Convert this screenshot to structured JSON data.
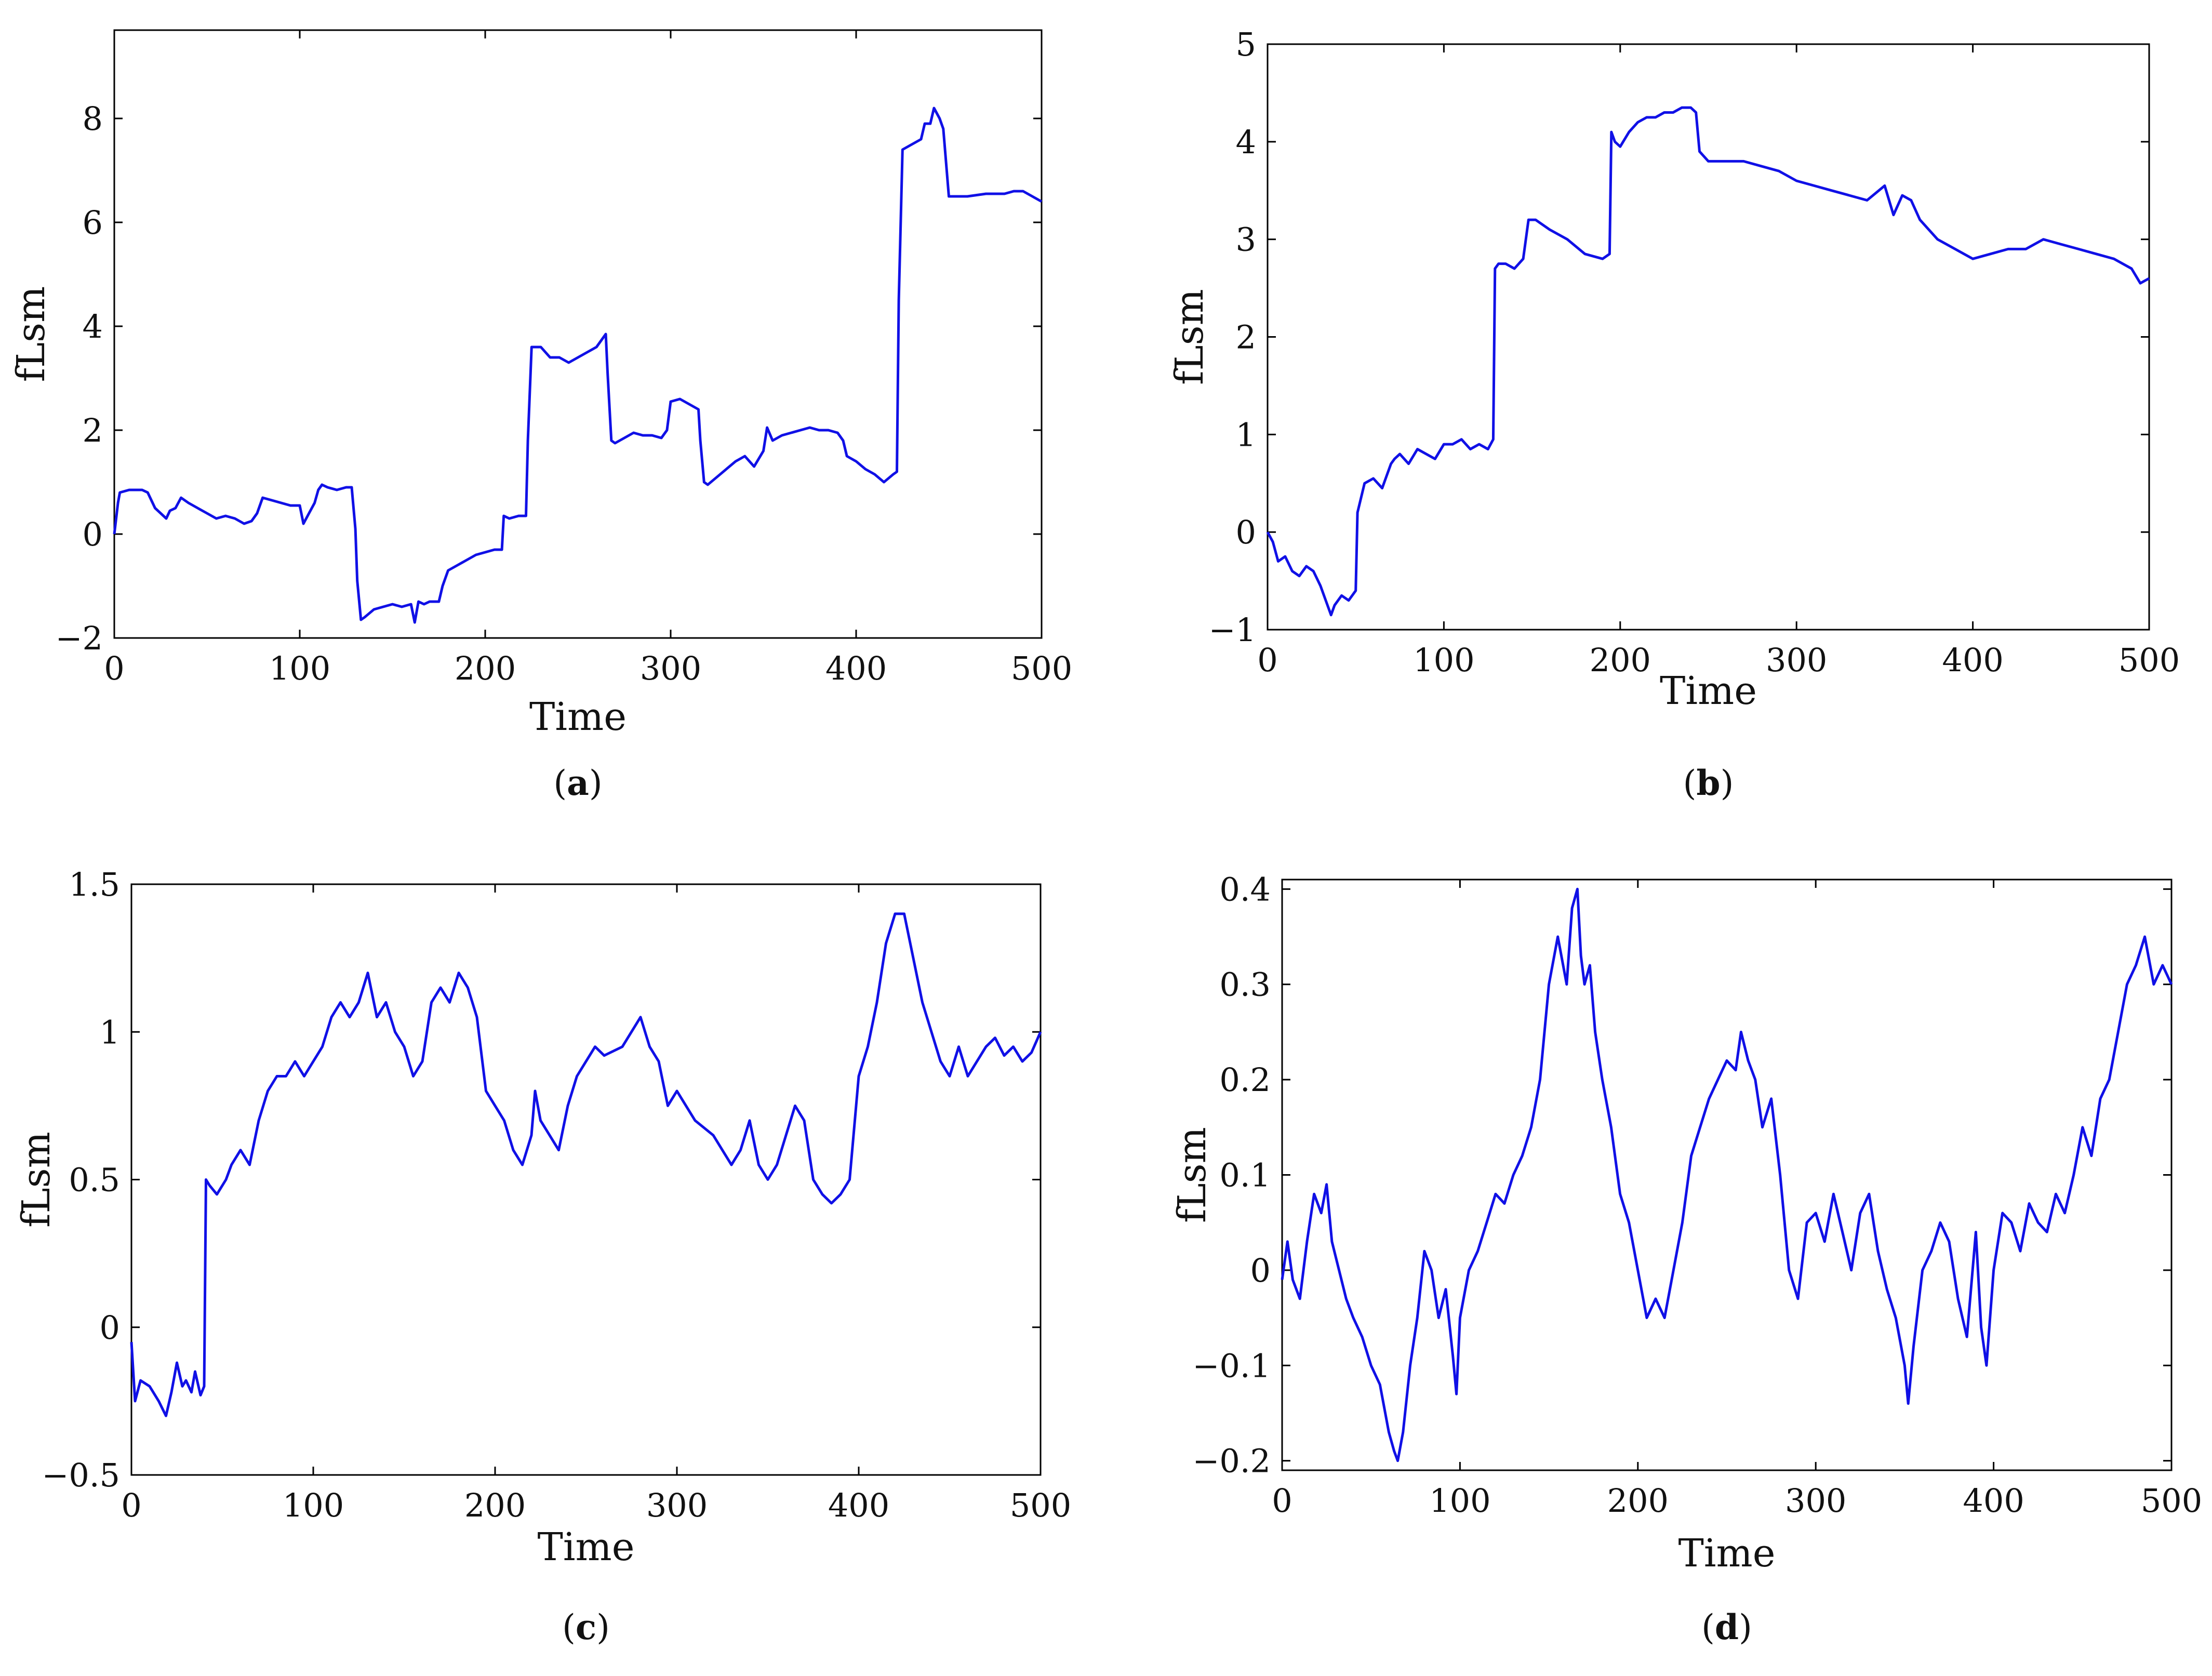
{
  "figure": {
    "line_color": "#1010e6",
    "axis_color": "#000000",
    "background": "#ffffff"
  },
  "chart_data": [
    {
      "panel": "a",
      "caption_letter": "a",
      "type": "line",
      "xlabel": "Time",
      "ylabel": "fLsm",
      "xlim": [
        0,
        500
      ],
      "ylim": [
        -2,
        9.7
      ],
      "xticks": [
        0,
        100,
        200,
        300,
        400,
        500
      ],
      "yticks": [
        -2,
        0,
        2,
        4,
        6,
        8
      ],
      "ytick_labels": [
        "−2",
        "0",
        "2",
        "4",
        "6",
        "8"
      ],
      "grid": false,
      "series": [
        {
          "x": [
            0,
            2,
            3,
            8,
            15,
            18,
            22,
            25,
            28,
            30,
            33,
            36,
            40,
            45,
            50,
            55,
            60,
            65,
            70,
            74,
            77,
            80,
            85,
            90,
            95,
            100,
            102,
            105,
            108,
            110,
            112,
            115,
            120,
            125,
            128,
            130,
            131,
            133,
            135,
            140,
            145,
            150,
            155,
            160,
            162,
            164,
            167,
            170,
            175,
            177,
            180,
            185,
            190,
            195,
            200,
            205,
            209,
            210,
            213,
            218,
            222,
            223,
            225,
            230,
            235,
            240,
            245,
            250,
            255,
            260,
            265,
            266,
            268,
            270,
            275,
            280,
            285,
            290,
            295,
            298,
            300,
            305,
            310,
            315,
            316,
            318,
            320,
            325,
            330,
            335,
            340,
            345,
            350,
            352,
            355,
            360,
            365,
            370,
            375,
            380,
            385,
            390,
            393,
            395,
            400,
            405,
            410,
            415,
            420,
            422,
            423,
            425,
            430,
            435,
            437,
            440,
            442,
            445,
            447,
            450,
            460,
            470,
            480,
            485,
            490,
            495,
            500
          ],
          "y": [
            0.0,
            0.6,
            0.8,
            0.85,
            0.85,
            0.8,
            0.5,
            0.4,
            0.3,
            0.45,
            0.5,
            0.7,
            0.6,
            0.5,
            0.4,
            0.3,
            0.35,
            0.3,
            0.2,
            0.25,
            0.4,
            0.7,
            0.65,
            0.6,
            0.55,
            0.55,
            0.2,
            0.4,
            0.6,
            0.85,
            0.95,
            0.9,
            0.85,
            0.9,
            0.9,
            0.1,
            -0.9,
            -1.65,
            -1.6,
            -1.45,
            -1.4,
            -1.35,
            -1.4,
            -1.35,
            -1.7,
            -1.3,
            -1.35,
            -1.3,
            -1.3,
            -1.0,
            -0.7,
            -0.6,
            -0.5,
            -0.4,
            -0.35,
            -0.3,
            -0.3,
            0.35,
            0.3,
            0.35,
            0.35,
            1.8,
            3.6,
            3.6,
            3.4,
            3.4,
            3.3,
            3.4,
            3.5,
            3.6,
            3.85,
            3.1,
            1.8,
            1.75,
            1.85,
            1.95,
            1.9,
            1.9,
            1.85,
            2.0,
            2.55,
            2.6,
            2.5,
            2.4,
            1.8,
            1.0,
            0.95,
            1.1,
            1.25,
            1.4,
            1.5,
            1.3,
            1.6,
            2.05,
            1.8,
            1.9,
            1.95,
            2.0,
            2.05,
            2.0,
            2.0,
            1.95,
            1.8,
            1.5,
            1.4,
            1.25,
            1.15,
            1.0,
            1.15,
            1.2,
            4.5,
            7.4,
            7.5,
            7.6,
            7.9,
            7.9,
            8.2,
            8.0,
            7.8,
            6.5,
            6.5,
            6.55,
            6.55,
            6.6,
            6.6,
            6.5,
            6.4
          ]
        }
      ]
    },
    {
      "panel": "b",
      "caption_letter": "b",
      "type": "line",
      "xlabel": "Time",
      "ylabel": "fLsm",
      "xlim": [
        0,
        500
      ],
      "ylim": [
        -1,
        5
      ],
      "xticks": [
        0,
        100,
        200,
        300,
        400,
        500
      ],
      "yticks": [
        -1,
        0,
        1,
        2,
        3,
        4,
        5
      ],
      "ytick_labels": [
        "−1",
        "0",
        "1",
        "2",
        "3",
        "4",
        "5"
      ],
      "grid": false,
      "series": [
        {
          "x": [
            0,
            3,
            6,
            10,
            14,
            18,
            22,
            26,
            30,
            33,
            36,
            38,
            42,
            46,
            50,
            51,
            55,
            60,
            65,
            70,
            72,
            75,
            80,
            85,
            90,
            95,
            100,
            105,
            110,
            115,
            120,
            125,
            128,
            129,
            131,
            135,
            140,
            145,
            148,
            152,
            160,
            170,
            180,
            190,
            194,
            195,
            197,
            200,
            205,
            210,
            215,
            220,
            225,
            230,
            235,
            240,
            243,
            245,
            250,
            260,
            270,
            280,
            290,
            300,
            310,
            320,
            330,
            340,
            350,
            355,
            360,
            365,
            370,
            375,
            380,
            385,
            390,
            395,
            400,
            410,
            420,
            430,
            440,
            450,
            460,
            470,
            480,
            490,
            495,
            500
          ],
          "y": [
            0.0,
            -0.1,
            -0.3,
            -0.25,
            -0.4,
            -0.45,
            -0.35,
            -0.4,
            -0.55,
            -0.7,
            -0.85,
            -0.75,
            -0.65,
            -0.7,
            -0.6,
            0.2,
            0.5,
            0.55,
            0.45,
            0.7,
            0.75,
            0.8,
            0.7,
            0.85,
            0.8,
            0.75,
            0.9,
            0.9,
            0.95,
            0.85,
            0.9,
            0.85,
            0.95,
            2.7,
            2.75,
            2.75,
            2.7,
            2.8,
            3.2,
            3.2,
            3.1,
            3.0,
            2.85,
            2.8,
            2.85,
            4.1,
            4.0,
            3.95,
            4.1,
            4.2,
            4.25,
            4.25,
            4.3,
            4.3,
            4.35,
            4.35,
            4.3,
            3.9,
            3.8,
            3.8,
            3.8,
            3.75,
            3.7,
            3.6,
            3.55,
            3.5,
            3.45,
            3.4,
            3.55,
            3.25,
            3.45,
            3.4,
            3.2,
            3.1,
            3.0,
            2.95,
            2.9,
            2.85,
            2.8,
            2.85,
            2.9,
            2.9,
            3.0,
            2.95,
            2.9,
            2.85,
            2.8,
            2.7,
            2.55,
            2.6
          ]
        }
      ]
    },
    {
      "panel": "c",
      "caption_letter": "c",
      "type": "line",
      "xlabel": "Time",
      "ylabel": "fLsm",
      "xlim": [
        0,
        500
      ],
      "ylim": [
        -0.5,
        1.5
      ],
      "xticks": [
        0,
        100,
        200,
        300,
        400,
        500
      ],
      "yticks": [
        -0.5,
        0,
        0.5,
        1,
        1.5
      ],
      "ytick_labels": [
        "−0.5",
        "0",
        "0.5",
        "1",
        "1.5"
      ],
      "grid": false,
      "series": [
        {
          "x": [
            0,
            2,
            5,
            10,
            15,
            19,
            22,
            25,
            28,
            30,
            33,
            35,
            38,
            40,
            41,
            43,
            47,
            52,
            55,
            60,
            65,
            70,
            75,
            80,
            85,
            90,
            95,
            100,
            105,
            110,
            115,
            120,
            125,
            130,
            135,
            140,
            145,
            150,
            155,
            160,
            165,
            170,
            175,
            180,
            185,
            190,
            195,
            200,
            205,
            210,
            215,
            220,
            222,
            225,
            230,
            235,
            240,
            245,
            250,
            255,
            260,
            270,
            280,
            285,
            290,
            295,
            300,
            305,
            310,
            320,
            325,
            330,
            335,
            340,
            345,
            350,
            355,
            360,
            365,
            370,
            375,
            380,
            385,
            390,
            395,
            400,
            405,
            410,
            415,
            420,
            425,
            430,
            435,
            440,
            445,
            450,
            455,
            460,
            465,
            470,
            475,
            480,
            485,
            490,
            495,
            500
          ],
          "y": [
            -0.05,
            -0.25,
            -0.18,
            -0.2,
            -0.25,
            -0.3,
            -0.22,
            -0.12,
            -0.2,
            -0.18,
            -0.22,
            -0.15,
            -0.23,
            -0.2,
            0.5,
            0.48,
            0.45,
            0.5,
            0.55,
            0.6,
            0.55,
            0.7,
            0.8,
            0.85,
            0.85,
            0.9,
            0.85,
            0.9,
            0.95,
            1.05,
            1.1,
            1.05,
            1.1,
            1.2,
            1.05,
            1.1,
            1.0,
            0.95,
            0.85,
            0.9,
            1.1,
            1.15,
            1.1,
            1.2,
            1.15,
            1.05,
            0.8,
            0.75,
            0.7,
            0.6,
            0.55,
            0.65,
            0.8,
            0.7,
            0.65,
            0.6,
            0.75,
            0.85,
            0.9,
            0.95,
            0.92,
            0.95,
            1.05,
            0.95,
            0.9,
            0.75,
            0.8,
            0.75,
            0.7,
            0.65,
            0.6,
            0.55,
            0.6,
            0.7,
            0.55,
            0.5,
            0.55,
            0.65,
            0.75,
            0.7,
            0.5,
            0.45,
            0.42,
            0.45,
            0.5,
            0.85,
            0.95,
            1.1,
            1.3,
            1.4,
            1.4,
            1.25,
            1.1,
            1.0,
            0.9,
            0.85,
            0.95,
            0.85,
            0.9,
            0.95,
            0.98,
            0.92,
            0.95,
            0.9,
            0.93,
            1.0
          ]
        }
      ]
    },
    {
      "panel": "d",
      "caption_letter": "d",
      "type": "line",
      "xlabel": "Time",
      "ylabel": "fLsm",
      "xlim": [
        0,
        500
      ],
      "ylim": [
        -0.21,
        0.41
      ],
      "xticks": [
        0,
        100,
        200,
        300,
        400,
        500
      ],
      "yticks": [
        -0.2,
        -0.1,
        0,
        0.1,
        0.2,
        0.3,
        0.4
      ],
      "ytick_labels": [
        "−0.2",
        "−0.1",
        "0",
        "0.1",
        "0.2",
        "0.3",
        "0.4"
      ],
      "grid": false,
      "series": [
        {
          "x": [
            0,
            3,
            6,
            10,
            14,
            18,
            22,
            25,
            28,
            32,
            36,
            40,
            45,
            50,
            55,
            60,
            63,
            65,
            68,
            72,
            76,
            80,
            84,
            88,
            92,
            96,
            98,
            100,
            105,
            110,
            115,
            120,
            125,
            130,
            135,
            140,
            145,
            150,
            155,
            160,
            163,
            166,
            168,
            170,
            173,
            176,
            180,
            185,
            190,
            195,
            200,
            205,
            210,
            215,
            220,
            225,
            230,
            235,
            240,
            245,
            250,
            255,
            258,
            262,
            266,
            270,
            275,
            280,
            285,
            290,
            295,
            300,
            305,
            310,
            315,
            320,
            325,
            330,
            335,
            340,
            345,
            350,
            352,
            355,
            360,
            365,
            370,
            375,
            380,
            385,
            390,
            393,
            396,
            400,
            405,
            410,
            415,
            420,
            425,
            430,
            435,
            440,
            445,
            450,
            455,
            460,
            465,
            470,
            475,
            480,
            485,
            490,
            495,
            500
          ],
          "y": [
            -0.01,
            0.03,
            -0.01,
            -0.03,
            0.03,
            0.08,
            0.06,
            0.09,
            0.03,
            0.0,
            -0.03,
            -0.05,
            -0.07,
            -0.1,
            -0.12,
            -0.17,
            -0.19,
            -0.2,
            -0.17,
            -0.1,
            -0.05,
            0.02,
            0.0,
            -0.05,
            -0.02,
            -0.09,
            -0.13,
            -0.05,
            0.0,
            0.02,
            0.05,
            0.08,
            0.07,
            0.1,
            0.12,
            0.15,
            0.2,
            0.3,
            0.35,
            0.3,
            0.38,
            0.4,
            0.33,
            0.3,
            0.32,
            0.25,
            0.2,
            0.15,
            0.08,
            0.05,
            0.0,
            -0.05,
            -0.03,
            -0.05,
            0.0,
            0.05,
            0.12,
            0.15,
            0.18,
            0.2,
            0.22,
            0.21,
            0.25,
            0.22,
            0.2,
            0.15,
            0.18,
            0.1,
            0.0,
            -0.03,
            0.05,
            0.06,
            0.03,
            0.08,
            0.04,
            0.0,
            0.06,
            0.08,
            0.02,
            -0.02,
            -0.05,
            -0.1,
            -0.14,
            -0.08,
            0.0,
            0.02,
            0.05,
            0.03,
            -0.03,
            -0.07,
            0.04,
            -0.06,
            -0.1,
            0.0,
            0.06,
            0.05,
            0.02,
            0.07,
            0.05,
            0.04,
            0.08,
            0.06,
            0.1,
            0.15,
            0.12,
            0.18,
            0.2,
            0.25,
            0.3,
            0.32,
            0.35,
            0.3,
            0.32,
            0.3
          ]
        }
      ]
    }
  ]
}
